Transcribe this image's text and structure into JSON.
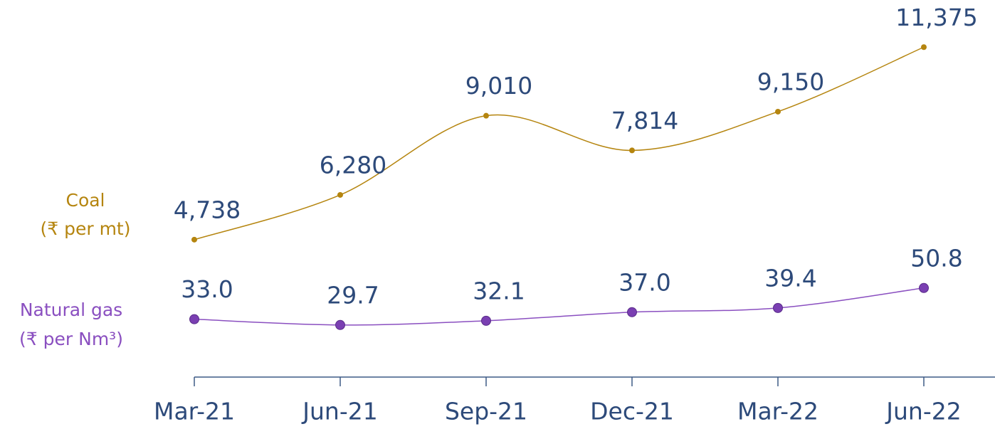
{
  "chart_data": {
    "type": "line",
    "categories": [
      "Mar-21",
      "Jun-21",
      "Sep-21",
      "Dec-21",
      "Mar-22",
      "Jun-22"
    ],
    "series": [
      {
        "name": "Coal",
        "unit": "(₹ per mt)",
        "color": "#b5850f",
        "marker_color": "#b5850f",
        "values": [
          4738,
          6280,
          9010,
          7814,
          9150,
          11375
        ],
        "value_labels": [
          "4,738",
          "6,280",
          "9,010",
          "7,814",
          "9,150",
          "11,375"
        ]
      },
      {
        "name": "Natural gas",
        "unit": "(₹ per Nm³)",
        "color": "#8a4fc0",
        "marker_color": "#7a3fb2",
        "axis": "y2",
        "values": [
          33.0,
          29.7,
          32.1,
          37.0,
          39.4,
          50.8
        ],
        "value_labels": [
          "33.0",
          "29.7",
          "32.1",
          "37.0",
          "39.4",
          "50.8"
        ]
      }
    ],
    "ylim": [
      0,
      13000
    ],
    "y2lim": [
      0,
      215
    ],
    "grid": false
  }
}
